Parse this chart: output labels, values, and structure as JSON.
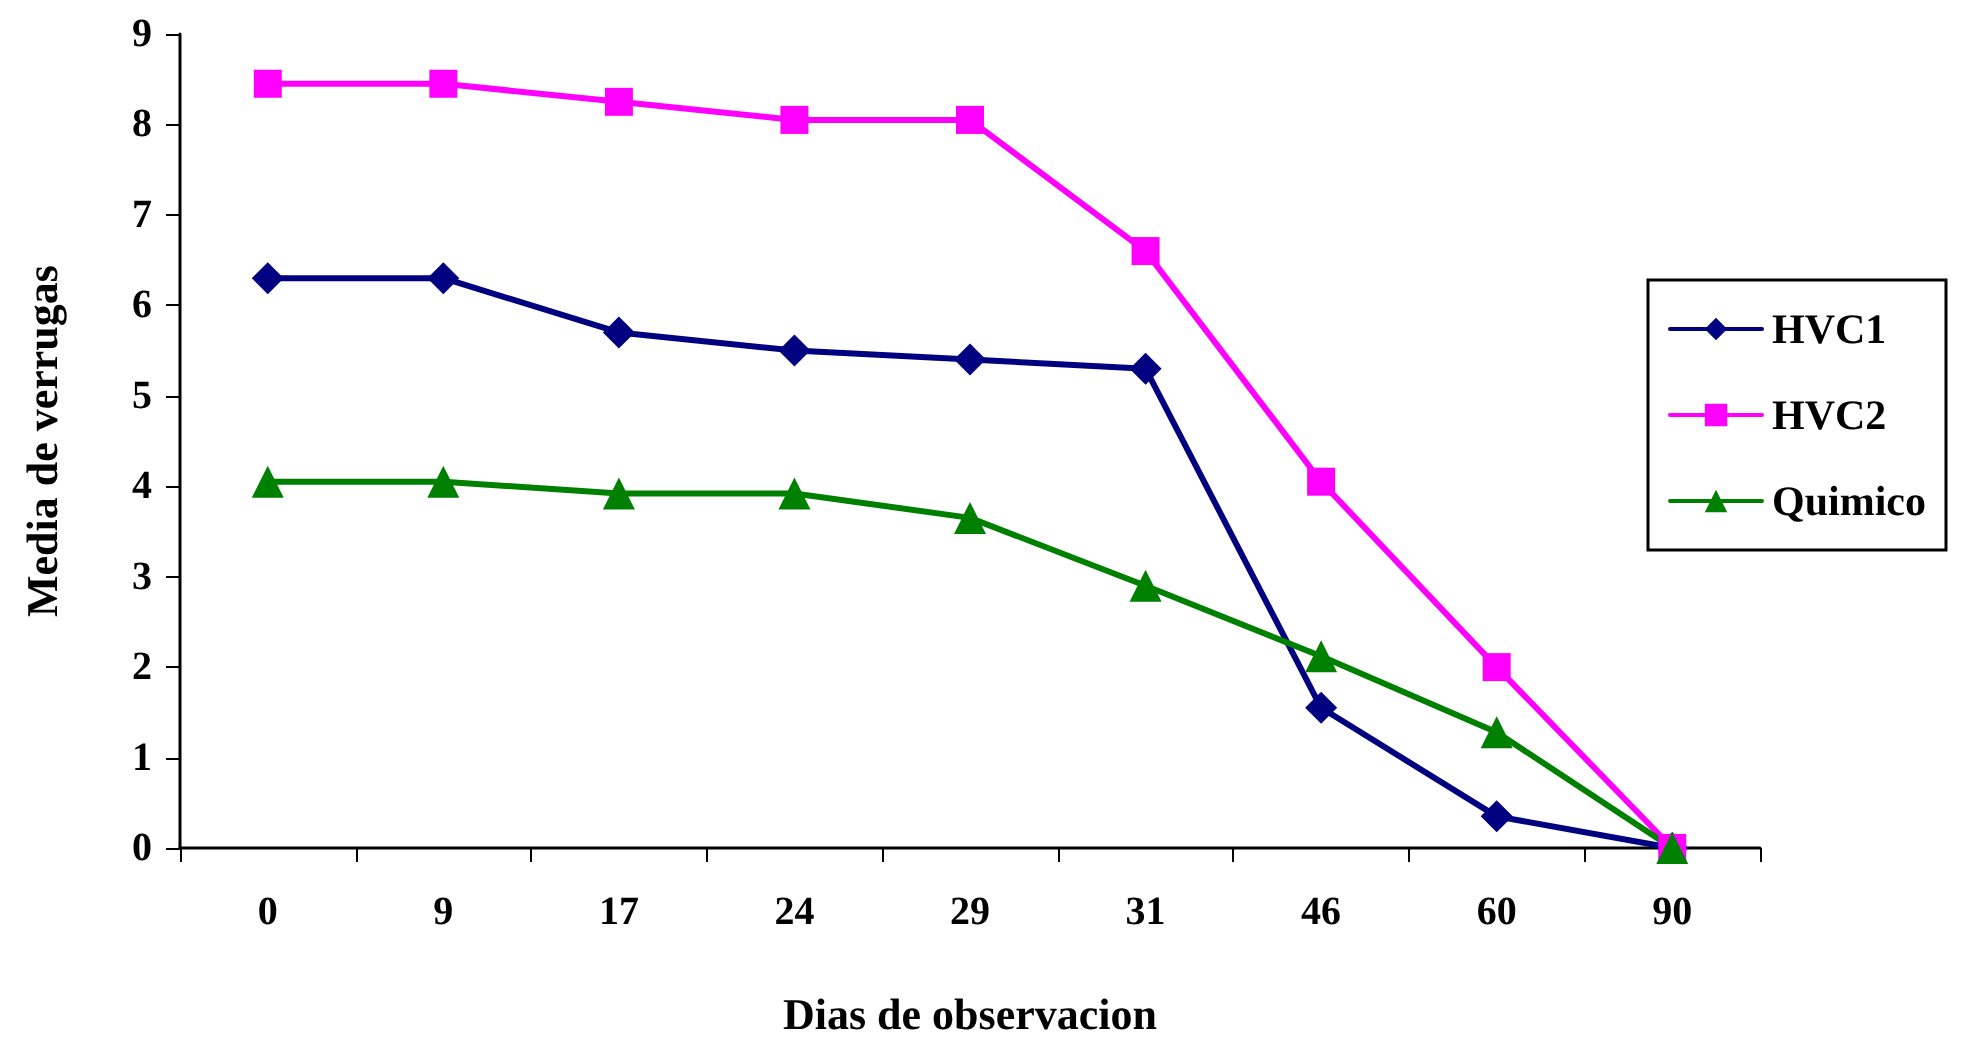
{
  "chart_data": {
    "type": "line",
    "xlabel": "Dias de observacion",
    "ylabel": "Media de verrugas",
    "categories": [
      "0",
      "9",
      "17",
      "24",
      "29",
      "31",
      "46",
      "60",
      "90"
    ],
    "series": [
      {
        "name": "HVC1",
        "color": "#000080",
        "marker": "diamond",
        "values": [
          6.3,
          6.3,
          5.7,
          5.5,
          5.4,
          5.3,
          1.55,
          0.35,
          0
        ]
      },
      {
        "name": "HVC2",
        "color": "#ff00ff",
        "marker": "square",
        "values": [
          8.45,
          8.45,
          8.25,
          8.05,
          8.05,
          6.6,
          4.05,
          2,
          0
        ]
      },
      {
        "name": "Quimico",
        "color": "#008000",
        "marker": "triangle",
        "values": [
          4.05,
          4.05,
          3.92,
          3.92,
          3.65,
          2.9,
          2.12,
          1.28,
          0
        ]
      }
    ],
    "ylim": [
      0,
      9
    ],
    "yticks": [
      0,
      1,
      2,
      3,
      4,
      5,
      6,
      7,
      8,
      9
    ],
    "grid": false,
    "legend": "right",
    "line_style": "solid"
  }
}
